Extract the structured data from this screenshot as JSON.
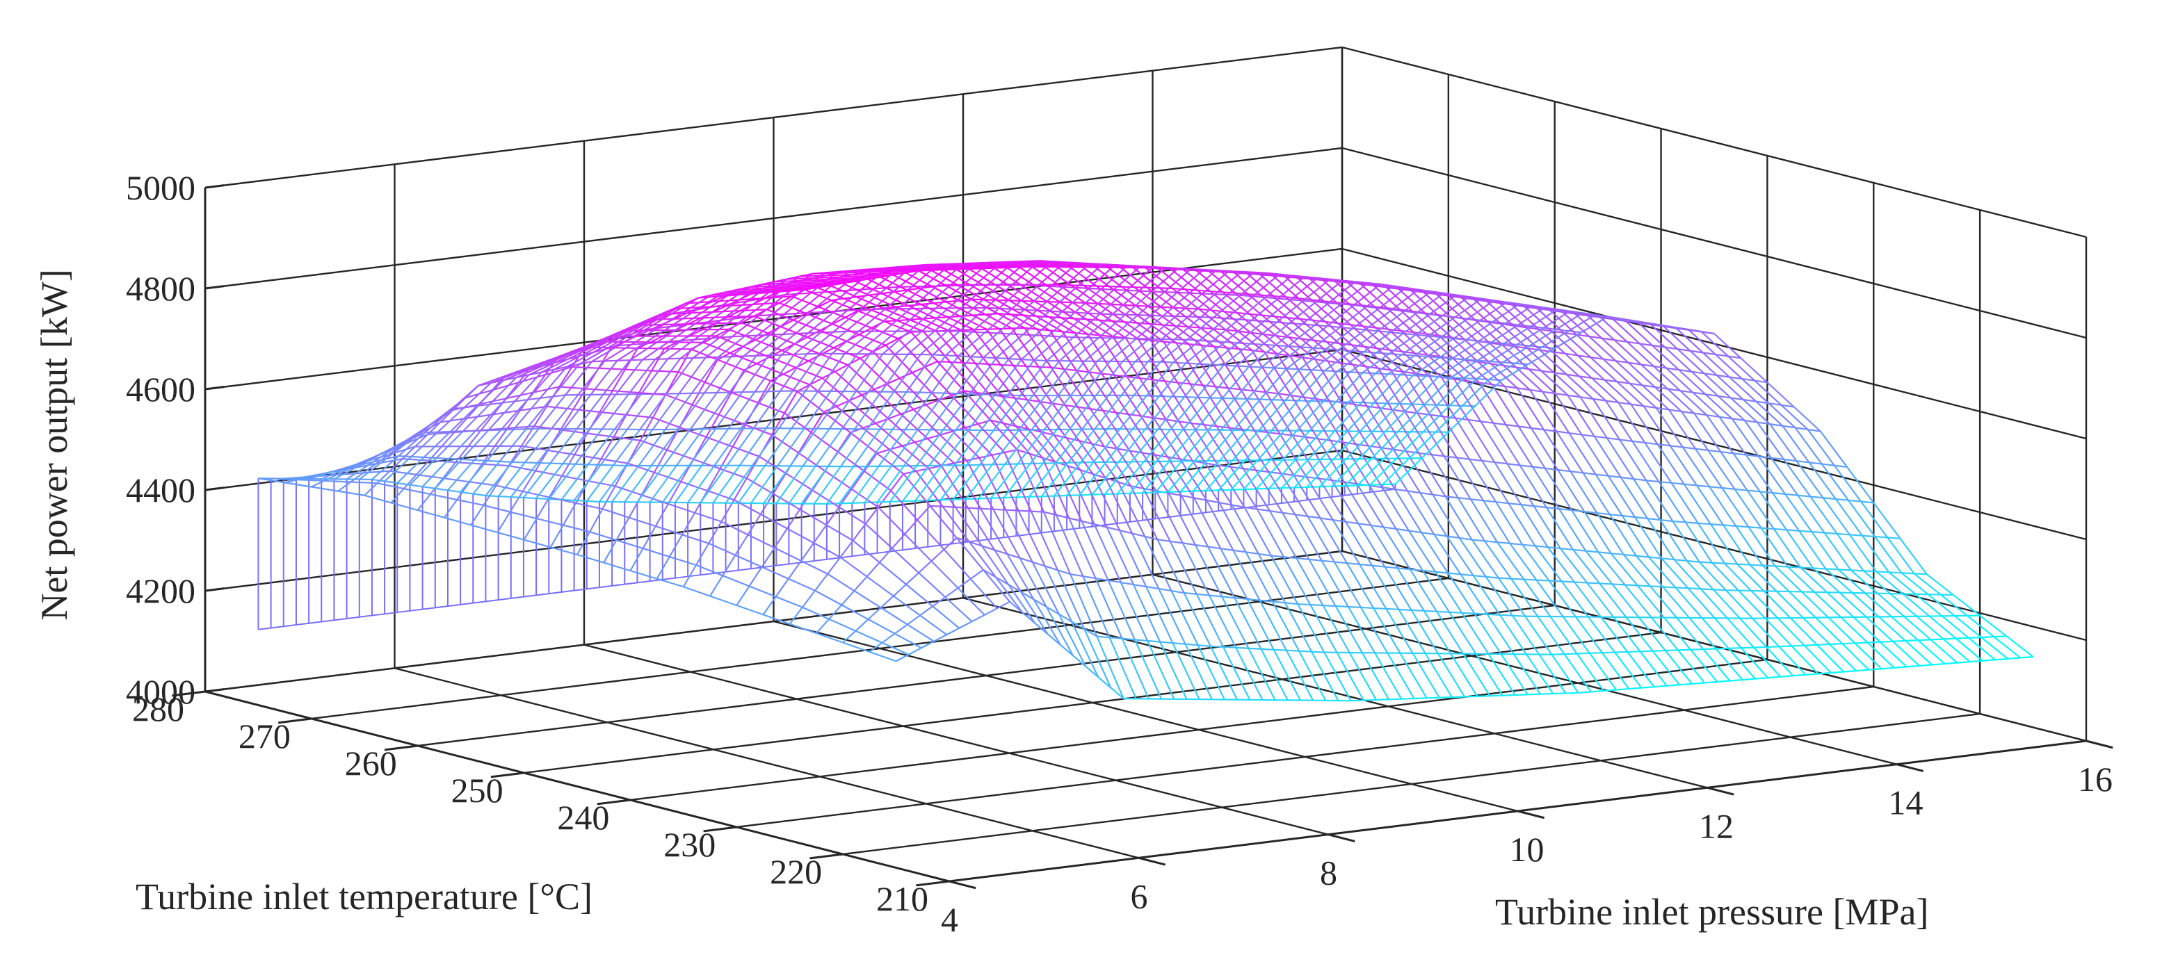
{
  "chart_data": {
    "type": "surface3d",
    "title": "",
    "xlabel": "Turbine inlet pressure [MPa]",
    "ylabel": "Turbine inlet temperature [°C]",
    "zlabel": "Net power output [kW]",
    "xlim": [
      4,
      16
    ],
    "ylim": [
      210,
      280
    ],
    "zlim": [
      4000,
      5000
    ],
    "xticks": [
      "4",
      "6",
      "8",
      "10",
      "12",
      "14",
      "16"
    ],
    "yticks": [
      "210",
      "220",
      "230",
      "240",
      "250",
      "260",
      "270",
      "280"
    ],
    "zticks": [
      "4000",
      "4200",
      "4400",
      "4600",
      "4800",
      "5000"
    ],
    "grid": true,
    "colormap": "cool",
    "colors": {
      "low": "#00ffff",
      "high": "#ff00ff",
      "axis": "#262626",
      "grid": "#262626"
    },
    "surface": {
      "pressure_MPa": [
        4,
        5.2,
        6.4,
        7.6,
        8.8,
        10,
        11.2,
        12.4,
        13.6,
        14.8,
        16
      ],
      "temperature_C": [
        215,
        225,
        235,
        245,
        255,
        265,
        275
      ],
      "power_kW": [
        [
          4410,
          4430,
          4450,
          4460,
          4465,
          4470,
          4450
        ],
        [
          4500,
          4700,
          4810,
          4840,
          4790,
          4660,
          4420
        ],
        [
          4280,
          4720,
          4900,
          4930,
          4860,
          4680,
          4360
        ],
        [
          4250,
          4620,
          4880,
          4940,
          4880,
          4660,
          4320
        ],
        [
          4220,
          4550,
          4830,
          4920,
          4870,
          4640,
          4290
        ],
        [
          4200,
          4490,
          4780,
          4890,
          4850,
          4610,
          4260
        ],
        [
          4180,
          4430,
          4720,
          4850,
          4810,
          4570,
          4240
        ],
        [
          4170,
          4380,
          4660,
          4800,
          4770,
          4540,
          4220
        ],
        [
          4160,
          4330,
          4600,
          4740,
          4720,
          4500,
          4200
        ],
        [
          4150,
          4290,
          4540,
          4680,
          4660,
          4460,
          4180
        ],
        [
          4140,
          4250,
          4480,
          4620,
          4600,
          4420,
          4160
        ]
      ]
    }
  }
}
